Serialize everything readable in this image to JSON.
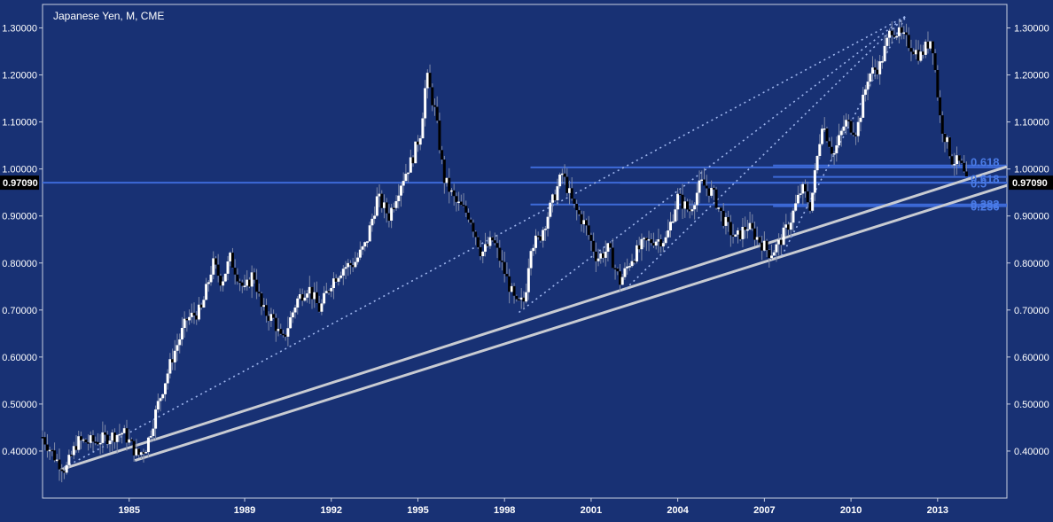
{
  "title": "Japanese Yen, M, CME",
  "current_price_label": "0.97090",
  "colors": {
    "background": "#183174",
    "border": "#c8cfe0",
    "candle_up": "#ffffff",
    "candle_down": "#000000",
    "horizontal_line": "#3d6ad8",
    "fib_label": "#4a7be6",
    "trendline": "#c8cbd2",
    "fan_line": "#9fb6ee",
    "tick_text": "#ffffff",
    "price_tag_bg": "#000000"
  },
  "chart_data": {
    "type": "candlestick",
    "title": "Japanese Yen, M, CME",
    "x_range": [
      1982.0,
      2015.4
    ],
    "y_range": [
      0.3,
      1.35
    ],
    "y_ticks": [
      "0.40000",
      "0.50000",
      "0.60000",
      "0.70000",
      "0.80000",
      "0.90000",
      "1.00000",
      "1.10000",
      "1.20000",
      "1.30000"
    ],
    "x_ticks": [
      "1985",
      "1989",
      "1992",
      "1995",
      "1998",
      "2001",
      "2004",
      "2007",
      "2010",
      "2013"
    ],
    "price_path": [
      [
        1982.0,
        0.43
      ],
      [
        1982.5,
        0.38
      ],
      [
        1982.8,
        0.36
      ],
      [
        1983.2,
        0.42
      ],
      [
        1983.8,
        0.42
      ],
      [
        1984.3,
        0.43
      ],
      [
        1984.8,
        0.44
      ],
      [
        1985.1,
        0.41
      ],
      [
        1985.3,
        0.39
      ],
      [
        1985.6,
        0.41
      ],
      [
        1986.0,
        0.5
      ],
      [
        1986.5,
        0.6
      ],
      [
        1987.0,
        0.68
      ],
      [
        1987.5,
        0.7
      ],
      [
        1987.9,
        0.8
      ],
      [
        1988.2,
        0.76
      ],
      [
        1988.5,
        0.81
      ],
      [
        1989.0,
        0.74
      ],
      [
        1989.3,
        0.78
      ],
      [
        1989.6,
        0.7
      ],
      [
        1990.0,
        0.68
      ],
      [
        1990.3,
        0.63
      ],
      [
        1990.8,
        0.72
      ],
      [
        1991.2,
        0.75
      ],
      [
        1991.6,
        0.7
      ],
      [
        1992.0,
        0.76
      ],
      [
        1992.4,
        0.79
      ],
      [
        1992.8,
        0.8
      ],
      [
        1993.2,
        0.84
      ],
      [
        1993.6,
        0.94
      ],
      [
        1994.0,
        0.9
      ],
      [
        1994.4,
        0.97
      ],
      [
        1994.8,
        1.02
      ],
      [
        1995.1,
        1.08
      ],
      [
        1995.3,
        1.2
      ],
      [
        1995.6,
        1.12
      ],
      [
        1995.9,
        0.98
      ],
      [
        1996.3,
        0.93
      ],
      [
        1996.8,
        0.9
      ],
      [
        1997.2,
        0.82
      ],
      [
        1997.6,
        0.85
      ],
      [
        1998.0,
        0.78
      ],
      [
        1998.4,
        0.71
      ],
      [
        1998.7,
        0.72
      ],
      [
        1998.9,
        0.84
      ],
      [
        1999.2,
        0.85
      ],
      [
        1999.6,
        0.92
      ],
      [
        2000.0,
        0.99
      ],
      [
        2000.4,
        0.92
      ],
      [
        2000.8,
        0.88
      ],
      [
        2001.2,
        0.81
      ],
      [
        2001.6,
        0.83
      ],
      [
        2002.0,
        0.76
      ],
      [
        2002.4,
        0.81
      ],
      [
        2002.8,
        0.84
      ],
      [
        2003.2,
        0.85
      ],
      [
        2003.6,
        0.85
      ],
      [
        2004.0,
        0.94
      ],
      [
        2004.4,
        0.91
      ],
      [
        2004.8,
        0.97
      ],
      [
        2005.2,
        0.95
      ],
      [
        2005.6,
        0.89
      ],
      [
        2006.0,
        0.85
      ],
      [
        2006.4,
        0.88
      ],
      [
        2006.8,
        0.85
      ],
      [
        2007.2,
        0.82
      ],
      [
        2007.5,
        0.84
      ],
      [
        2007.9,
        0.89
      ],
      [
        2008.3,
        0.96
      ],
      [
        2008.6,
        0.92
      ],
      [
        2009.0,
        1.1
      ],
      [
        2009.4,
        1.03
      ],
      [
        2009.8,
        1.1
      ],
      [
        2010.2,
        1.08
      ],
      [
        2010.6,
        1.2
      ],
      [
        2011.0,
        1.22
      ],
      [
        2011.4,
        1.3
      ],
      [
        2011.8,
        1.28
      ],
      [
        2012.1,
        1.26
      ],
      [
        2012.4,
        1.24
      ],
      [
        2012.8,
        1.28
      ],
      [
        2013.1,
        1.1
      ],
      [
        2013.5,
        1.02
      ],
      [
        2013.8,
        1.01
      ],
      [
        2014.0,
        0.97
      ]
    ],
    "horizontal_lines": [
      {
        "x_start": 1982.0,
        "x_end": 2015.4,
        "y": 0.9709
      },
      {
        "x_start": 1998.9,
        "x_end": 2015.4,
        "y": 1.0033
      },
      {
        "x_start": 1998.9,
        "x_end": 2015.4,
        "y": 0.9245
      },
      {
        "x_start": 2002.0,
        "x_end": 2015.4,
        "y": 0.9707
      },
      {
        "x_start": 2007.3,
        "x_end": 2015.4,
        "y": 1.0075
      },
      {
        "x_start": 2007.3,
        "x_end": 2015.4,
        "y": 0.983
      },
      {
        "x_start": 2007.3,
        "x_end": 2015.4,
        "y": 0.9208
      }
    ],
    "fib_labels": [
      {
        "text": "0.618",
        "y": 1.015
      },
      {
        "text": "0.618",
        "y": 0.98
      },
      {
        "text": "0.5",
        "y": 0.97
      },
      {
        "text": "0.382",
        "y": 0.926
      },
      {
        "text": "0.236",
        "y": 0.921
      }
    ],
    "trendlines": [
      {
        "x1": 1982.6,
        "y1": 0.36,
        "x2": 2015.4,
        "y2": 1.005
      },
      {
        "x1": 1985.2,
        "y1": 0.38,
        "x2": 2015.4,
        "y2": 0.965
      }
    ],
    "fan_apex": [
      2011.9,
      1.325
    ],
    "fan_lines": [
      [
        1982.6,
        0.36
      ],
      [
        1998.5,
        0.695
      ],
      [
        2002.2,
        0.745
      ],
      [
        2007.6,
        0.815
      ]
    ]
  }
}
